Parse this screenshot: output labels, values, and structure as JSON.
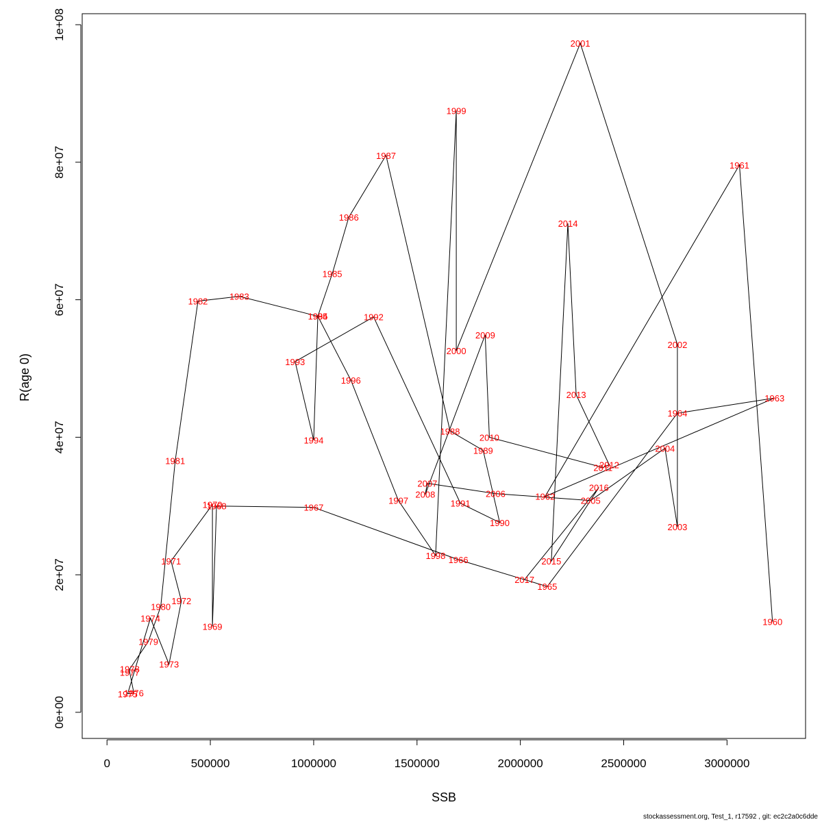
{
  "chart_data": {
    "type": "line",
    "xlabel": "SSB",
    "ylabel": "R(age 0)",
    "xlim": [
      -120000,
      3380000
    ],
    "ylim": [
      -3800000,
      101600000
    ],
    "x_ticks": [
      0,
      500000,
      1000000,
      1500000,
      2000000,
      2500000,
      3000000
    ],
    "x_tick_labels": [
      "0",
      "500000",
      "1000000",
      "1500000",
      "2000000",
      "2500000",
      "3000000"
    ],
    "y_ticks": [
      0,
      20000000,
      40000000,
      60000000,
      80000000,
      100000000
    ],
    "y_tick_labels": [
      "0e+00",
      "2e+07",
      "4e+07",
      "6e+07",
      "8e+07",
      "1e+08"
    ],
    "grid": false,
    "points": [
      {
        "year": "1960",
        "ssb": 3220000,
        "r": 13200000
      },
      {
        "year": "1961",
        "ssb": 3060000,
        "r": 79600000
      },
      {
        "year": "1962",
        "ssb": 2120000,
        "r": 31400000
      },
      {
        "year": "1963",
        "ssb": 3230000,
        "r": 45700000
      },
      {
        "year": "1964",
        "ssb": 2760000,
        "r": 43500000
      },
      {
        "year": "1965",
        "ssb": 2130000,
        "r": 18300000
      },
      {
        "year": "1966",
        "ssb": 1700000,
        "r": 22200000
      },
      {
        "year": "1967",
        "ssb": 1000000,
        "r": 29800000
      },
      {
        "year": "1968",
        "ssb": 530000,
        "r": 30000000
      },
      {
        "year": "1969",
        "ssb": 510000,
        "r": 12500000
      },
      {
        "year": "1970",
        "ssb": 510000,
        "r": 30200000
      },
      {
        "year": "1971",
        "ssb": 310000,
        "r": 22000000
      },
      {
        "year": "1972",
        "ssb": 360000,
        "r": 16200000
      },
      {
        "year": "1973",
        "ssb": 300000,
        "r": 7000000
      },
      {
        "year": "1974",
        "ssb": 210000,
        "r": 13700000
      },
      {
        "year": "1975",
        "ssb": 100000,
        "r": 2700000
      },
      {
        "year": "1976",
        "ssb": 130000,
        "r": 2800000
      },
      {
        "year": "1977",
        "ssb": 110000,
        "r": 5800000
      },
      {
        "year": "1978",
        "ssb": 110000,
        "r": 6300000
      },
      {
        "year": "1979",
        "ssb": 200000,
        "r": 10300000
      },
      {
        "year": "1980",
        "ssb": 260000,
        "r": 15400000
      },
      {
        "year": "1981",
        "ssb": 330000,
        "r": 36600000
      },
      {
        "year": "1982",
        "ssb": 440000,
        "r": 59800000
      },
      {
        "year": "1983",
        "ssb": 640000,
        "r": 60500000
      },
      {
        "year": "1984",
        "ssb": 1020000,
        "r": 57600000
      },
      {
        "year": "1985",
        "ssb": 1090000,
        "r": 63800000
      },
      {
        "year": "1986",
        "ssb": 1170000,
        "r": 72000000
      },
      {
        "year": "1987",
        "ssb": 1350000,
        "r": 81000000
      },
      {
        "year": "1988",
        "ssb": 1660000,
        "r": 40900000
      },
      {
        "year": "1989",
        "ssb": 1820000,
        "r": 38100000
      },
      {
        "year": "1990",
        "ssb": 1900000,
        "r": 27600000
      },
      {
        "year": "1991",
        "ssb": 1710000,
        "r": 30400000
      },
      {
        "year": "1992",
        "ssb": 1290000,
        "r": 57500000
      },
      {
        "year": "1993",
        "ssb": 910000,
        "r": 51000000
      },
      {
        "year": "1994",
        "ssb": 1000000,
        "r": 39600000
      },
      {
        "year": "1995",
        "ssb": 1020000,
        "r": 57600000
      },
      {
        "year": "1996",
        "ssb": 1180000,
        "r": 48300000
      },
      {
        "year": "1997",
        "ssb": 1410000,
        "r": 30800000
      },
      {
        "year": "1998",
        "ssb": 1590000,
        "r": 22800000
      },
      {
        "year": "1999",
        "ssb": 1690000,
        "r": 87500000
      },
      {
        "year": "2000",
        "ssb": 1690000,
        "r": 52600000
      },
      {
        "year": "2001",
        "ssb": 2290000,
        "r": 97300000
      },
      {
        "year": "2002",
        "ssb": 2760000,
        "r": 53500000
      },
      {
        "year": "2003",
        "ssb": 2760000,
        "r": 27000000
      },
      {
        "year": "2004",
        "ssb": 2700000,
        "r": 38400000
      },
      {
        "year": "2005",
        "ssb": 2340000,
        "r": 30800000
      },
      {
        "year": "2006",
        "ssb": 1880000,
        "r": 31800000
      },
      {
        "year": "2007",
        "ssb": 1550000,
        "r": 33300000
      },
      {
        "year": "2008",
        "ssb": 1540000,
        "r": 31700000
      },
      {
        "year": "2009",
        "ssb": 1830000,
        "r": 54900000
      },
      {
        "year": "2010",
        "ssb": 1850000,
        "r": 40000000
      },
      {
        "year": "2011",
        "ssb": 2400000,
        "r": 35600000
      },
      {
        "year": "2012",
        "ssb": 2430000,
        "r": 36000000
      },
      {
        "year": "2013",
        "ssb": 2270000,
        "r": 46200000
      },
      {
        "year": "2014",
        "ssb": 2230000,
        "r": 71100000
      },
      {
        "year": "2015",
        "ssb": 2150000,
        "r": 22000000
      },
      {
        "year": "2016",
        "ssb": 2380000,
        "r": 32700000
      },
      {
        "year": "2017",
        "ssb": 2020000,
        "r": 19300000
      }
    ]
  },
  "footer": "stockassessment.org, Test_1, r17592 , git: ec2c2a0c6dde"
}
